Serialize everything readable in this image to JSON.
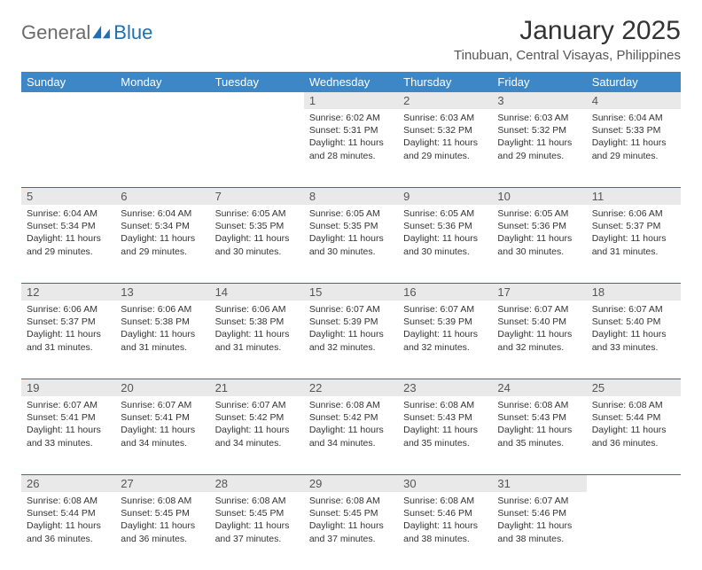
{
  "brand": {
    "part1": "General",
    "part2": "Blue"
  },
  "title": "January 2025",
  "location": "Tinubuan, Central Visayas, Philippines",
  "colors": {
    "header_bg": "#3d87c7",
    "header_text": "#ffffff",
    "daynum_bg": "#e9e9e9",
    "rule": "#2f6fa6",
    "brand_gray": "#6b6b6b",
    "brand_blue": "#1f6fb2"
  },
  "day_headers": [
    "Sunday",
    "Monday",
    "Tuesday",
    "Wednesday",
    "Thursday",
    "Friday",
    "Saturday"
  ],
  "weeks": [
    [
      null,
      null,
      null,
      {
        "n": "1",
        "sunrise": "Sunrise: 6:02 AM",
        "sunset": "Sunset: 5:31 PM",
        "d1": "Daylight: 11 hours",
        "d2": "and 28 minutes."
      },
      {
        "n": "2",
        "sunrise": "Sunrise: 6:03 AM",
        "sunset": "Sunset: 5:32 PM",
        "d1": "Daylight: 11 hours",
        "d2": "and 29 minutes."
      },
      {
        "n": "3",
        "sunrise": "Sunrise: 6:03 AM",
        "sunset": "Sunset: 5:32 PM",
        "d1": "Daylight: 11 hours",
        "d2": "and 29 minutes."
      },
      {
        "n": "4",
        "sunrise": "Sunrise: 6:04 AM",
        "sunset": "Sunset: 5:33 PM",
        "d1": "Daylight: 11 hours",
        "d2": "and 29 minutes."
      }
    ],
    [
      {
        "n": "5",
        "sunrise": "Sunrise: 6:04 AM",
        "sunset": "Sunset: 5:34 PM",
        "d1": "Daylight: 11 hours",
        "d2": "and 29 minutes."
      },
      {
        "n": "6",
        "sunrise": "Sunrise: 6:04 AM",
        "sunset": "Sunset: 5:34 PM",
        "d1": "Daylight: 11 hours",
        "d2": "and 29 minutes."
      },
      {
        "n": "7",
        "sunrise": "Sunrise: 6:05 AM",
        "sunset": "Sunset: 5:35 PM",
        "d1": "Daylight: 11 hours",
        "d2": "and 30 minutes."
      },
      {
        "n": "8",
        "sunrise": "Sunrise: 6:05 AM",
        "sunset": "Sunset: 5:35 PM",
        "d1": "Daylight: 11 hours",
        "d2": "and 30 minutes."
      },
      {
        "n": "9",
        "sunrise": "Sunrise: 6:05 AM",
        "sunset": "Sunset: 5:36 PM",
        "d1": "Daylight: 11 hours",
        "d2": "and 30 minutes."
      },
      {
        "n": "10",
        "sunrise": "Sunrise: 6:05 AM",
        "sunset": "Sunset: 5:36 PM",
        "d1": "Daylight: 11 hours",
        "d2": "and 30 minutes."
      },
      {
        "n": "11",
        "sunrise": "Sunrise: 6:06 AM",
        "sunset": "Sunset: 5:37 PM",
        "d1": "Daylight: 11 hours",
        "d2": "and 31 minutes."
      }
    ],
    [
      {
        "n": "12",
        "sunrise": "Sunrise: 6:06 AM",
        "sunset": "Sunset: 5:37 PM",
        "d1": "Daylight: 11 hours",
        "d2": "and 31 minutes."
      },
      {
        "n": "13",
        "sunrise": "Sunrise: 6:06 AM",
        "sunset": "Sunset: 5:38 PM",
        "d1": "Daylight: 11 hours",
        "d2": "and 31 minutes."
      },
      {
        "n": "14",
        "sunrise": "Sunrise: 6:06 AM",
        "sunset": "Sunset: 5:38 PM",
        "d1": "Daylight: 11 hours",
        "d2": "and 31 minutes."
      },
      {
        "n": "15",
        "sunrise": "Sunrise: 6:07 AM",
        "sunset": "Sunset: 5:39 PM",
        "d1": "Daylight: 11 hours",
        "d2": "and 32 minutes."
      },
      {
        "n": "16",
        "sunrise": "Sunrise: 6:07 AM",
        "sunset": "Sunset: 5:39 PM",
        "d1": "Daylight: 11 hours",
        "d2": "and 32 minutes."
      },
      {
        "n": "17",
        "sunrise": "Sunrise: 6:07 AM",
        "sunset": "Sunset: 5:40 PM",
        "d1": "Daylight: 11 hours",
        "d2": "and 32 minutes."
      },
      {
        "n": "18",
        "sunrise": "Sunrise: 6:07 AM",
        "sunset": "Sunset: 5:40 PM",
        "d1": "Daylight: 11 hours",
        "d2": "and 33 minutes."
      }
    ],
    [
      {
        "n": "19",
        "sunrise": "Sunrise: 6:07 AM",
        "sunset": "Sunset: 5:41 PM",
        "d1": "Daylight: 11 hours",
        "d2": "and 33 minutes."
      },
      {
        "n": "20",
        "sunrise": "Sunrise: 6:07 AM",
        "sunset": "Sunset: 5:41 PM",
        "d1": "Daylight: 11 hours",
        "d2": "and 34 minutes."
      },
      {
        "n": "21",
        "sunrise": "Sunrise: 6:07 AM",
        "sunset": "Sunset: 5:42 PM",
        "d1": "Daylight: 11 hours",
        "d2": "and 34 minutes."
      },
      {
        "n": "22",
        "sunrise": "Sunrise: 6:08 AM",
        "sunset": "Sunset: 5:42 PM",
        "d1": "Daylight: 11 hours",
        "d2": "and 34 minutes."
      },
      {
        "n": "23",
        "sunrise": "Sunrise: 6:08 AM",
        "sunset": "Sunset: 5:43 PM",
        "d1": "Daylight: 11 hours",
        "d2": "and 35 minutes."
      },
      {
        "n": "24",
        "sunrise": "Sunrise: 6:08 AM",
        "sunset": "Sunset: 5:43 PM",
        "d1": "Daylight: 11 hours",
        "d2": "and 35 minutes."
      },
      {
        "n": "25",
        "sunrise": "Sunrise: 6:08 AM",
        "sunset": "Sunset: 5:44 PM",
        "d1": "Daylight: 11 hours",
        "d2": "and 36 minutes."
      }
    ],
    [
      {
        "n": "26",
        "sunrise": "Sunrise: 6:08 AM",
        "sunset": "Sunset: 5:44 PM",
        "d1": "Daylight: 11 hours",
        "d2": "and 36 minutes."
      },
      {
        "n": "27",
        "sunrise": "Sunrise: 6:08 AM",
        "sunset": "Sunset: 5:45 PM",
        "d1": "Daylight: 11 hours",
        "d2": "and 36 minutes."
      },
      {
        "n": "28",
        "sunrise": "Sunrise: 6:08 AM",
        "sunset": "Sunset: 5:45 PM",
        "d1": "Daylight: 11 hours",
        "d2": "and 37 minutes."
      },
      {
        "n": "29",
        "sunrise": "Sunrise: 6:08 AM",
        "sunset": "Sunset: 5:45 PM",
        "d1": "Daylight: 11 hours",
        "d2": "and 37 minutes."
      },
      {
        "n": "30",
        "sunrise": "Sunrise: 6:08 AM",
        "sunset": "Sunset: 5:46 PM",
        "d1": "Daylight: 11 hours",
        "d2": "and 38 minutes."
      },
      {
        "n": "31",
        "sunrise": "Sunrise: 6:07 AM",
        "sunset": "Sunset: 5:46 PM",
        "d1": "Daylight: 11 hours",
        "d2": "and 38 minutes."
      },
      null
    ]
  ]
}
